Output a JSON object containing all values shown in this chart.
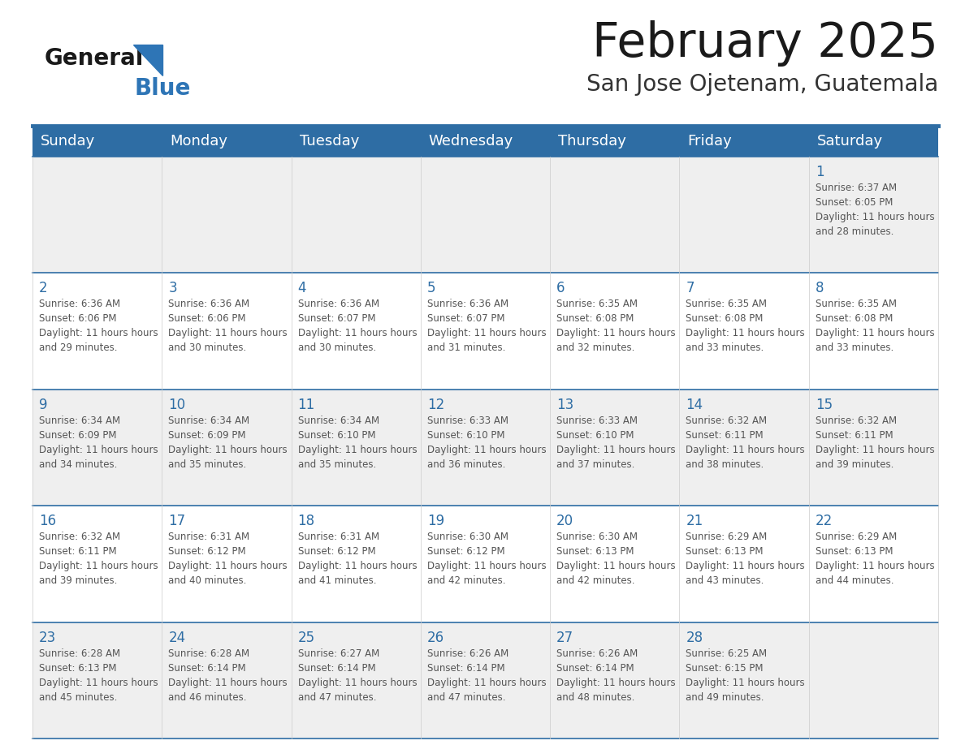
{
  "title": "February 2025",
  "subtitle": "San Jose Ojetenam, Guatemala",
  "header_color": "#2E6DA4",
  "header_text_color": "#FFFFFF",
  "day_names": [
    "Sunday",
    "Monday",
    "Tuesday",
    "Wednesday",
    "Thursday",
    "Friday",
    "Saturday"
  ],
  "background_color": "#FFFFFF",
  "cell_bg_row0": "#EFEFEF",
  "cell_bg_row1": "#FFFFFF",
  "cell_bg_row2": "#EFEFEF",
  "cell_bg_row3": "#FFFFFF",
  "cell_bg_row4": "#EFEFEF",
  "text_color": "#555555",
  "day_num_color": "#2E6DA4",
  "line_color": "#2E6DA4",
  "days": [
    {
      "day": 1,
      "col": 6,
      "row": 0,
      "sunrise": "6:37 AM",
      "sunset": "6:05 PM",
      "daylight": "11 hours and 28 minutes."
    },
    {
      "day": 2,
      "col": 0,
      "row": 1,
      "sunrise": "6:36 AM",
      "sunset": "6:06 PM",
      "daylight": "11 hours and 29 minutes."
    },
    {
      "day": 3,
      "col": 1,
      "row": 1,
      "sunrise": "6:36 AM",
      "sunset": "6:06 PM",
      "daylight": "11 hours and 30 minutes."
    },
    {
      "day": 4,
      "col": 2,
      "row": 1,
      "sunrise": "6:36 AM",
      "sunset": "6:07 PM",
      "daylight": "11 hours and 30 minutes."
    },
    {
      "day": 5,
      "col": 3,
      "row": 1,
      "sunrise": "6:36 AM",
      "sunset": "6:07 PM",
      "daylight": "11 hours and 31 minutes."
    },
    {
      "day": 6,
      "col": 4,
      "row": 1,
      "sunrise": "6:35 AM",
      "sunset": "6:08 PM",
      "daylight": "11 hours and 32 minutes."
    },
    {
      "day": 7,
      "col": 5,
      "row": 1,
      "sunrise": "6:35 AM",
      "sunset": "6:08 PM",
      "daylight": "11 hours and 33 minutes."
    },
    {
      "day": 8,
      "col": 6,
      "row": 1,
      "sunrise": "6:35 AM",
      "sunset": "6:08 PM",
      "daylight": "11 hours and 33 minutes."
    },
    {
      "day": 9,
      "col": 0,
      "row": 2,
      "sunrise": "6:34 AM",
      "sunset": "6:09 PM",
      "daylight": "11 hours and 34 minutes."
    },
    {
      "day": 10,
      "col": 1,
      "row": 2,
      "sunrise": "6:34 AM",
      "sunset": "6:09 PM",
      "daylight": "11 hours and 35 minutes."
    },
    {
      "day": 11,
      "col": 2,
      "row": 2,
      "sunrise": "6:34 AM",
      "sunset": "6:10 PM",
      "daylight": "11 hours and 35 minutes."
    },
    {
      "day": 12,
      "col": 3,
      "row": 2,
      "sunrise": "6:33 AM",
      "sunset": "6:10 PM",
      "daylight": "11 hours and 36 minutes."
    },
    {
      "day": 13,
      "col": 4,
      "row": 2,
      "sunrise": "6:33 AM",
      "sunset": "6:10 PM",
      "daylight": "11 hours and 37 minutes."
    },
    {
      "day": 14,
      "col": 5,
      "row": 2,
      "sunrise": "6:32 AM",
      "sunset": "6:11 PM",
      "daylight": "11 hours and 38 minutes."
    },
    {
      "day": 15,
      "col": 6,
      "row": 2,
      "sunrise": "6:32 AM",
      "sunset": "6:11 PM",
      "daylight": "11 hours and 39 minutes."
    },
    {
      "day": 16,
      "col": 0,
      "row": 3,
      "sunrise": "6:32 AM",
      "sunset": "6:11 PM",
      "daylight": "11 hours and 39 minutes."
    },
    {
      "day": 17,
      "col": 1,
      "row": 3,
      "sunrise": "6:31 AM",
      "sunset": "6:12 PM",
      "daylight": "11 hours and 40 minutes."
    },
    {
      "day": 18,
      "col": 2,
      "row": 3,
      "sunrise": "6:31 AM",
      "sunset": "6:12 PM",
      "daylight": "11 hours and 41 minutes."
    },
    {
      "day": 19,
      "col": 3,
      "row": 3,
      "sunrise": "6:30 AM",
      "sunset": "6:12 PM",
      "daylight": "11 hours and 42 minutes."
    },
    {
      "day": 20,
      "col": 4,
      "row": 3,
      "sunrise": "6:30 AM",
      "sunset": "6:13 PM",
      "daylight": "11 hours and 42 minutes."
    },
    {
      "day": 21,
      "col": 5,
      "row": 3,
      "sunrise": "6:29 AM",
      "sunset": "6:13 PM",
      "daylight": "11 hours and 43 minutes."
    },
    {
      "day": 22,
      "col": 6,
      "row": 3,
      "sunrise": "6:29 AM",
      "sunset": "6:13 PM",
      "daylight": "11 hours and 44 minutes."
    },
    {
      "day": 23,
      "col": 0,
      "row": 4,
      "sunrise": "6:28 AM",
      "sunset": "6:13 PM",
      "daylight": "11 hours and 45 minutes."
    },
    {
      "day": 24,
      "col": 1,
      "row": 4,
      "sunrise": "6:28 AM",
      "sunset": "6:14 PM",
      "daylight": "11 hours and 46 minutes."
    },
    {
      "day": 25,
      "col": 2,
      "row": 4,
      "sunrise": "6:27 AM",
      "sunset": "6:14 PM",
      "daylight": "11 hours and 47 minutes."
    },
    {
      "day": 26,
      "col": 3,
      "row": 4,
      "sunrise": "6:26 AM",
      "sunset": "6:14 PM",
      "daylight": "11 hours and 47 minutes."
    },
    {
      "day": 27,
      "col": 4,
      "row": 4,
      "sunrise": "6:26 AM",
      "sunset": "6:14 PM",
      "daylight": "11 hours and 48 minutes."
    },
    {
      "day": 28,
      "col": 5,
      "row": 4,
      "sunrise": "6:25 AM",
      "sunset": "6:15 PM",
      "daylight": "11 hours and 49 minutes."
    }
  ],
  "num_rows": 5,
  "num_cols": 7,
  "cell_row_colors": [
    "#EFEFEF",
    "#FFFFFF",
    "#EFEFEF",
    "#FFFFFF",
    "#EFEFEF"
  ]
}
